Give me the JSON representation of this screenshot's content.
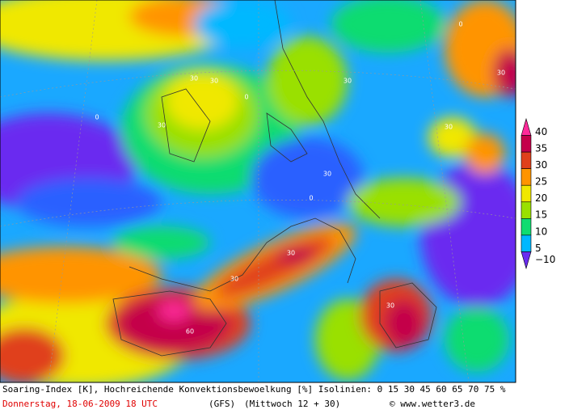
{
  "map": {
    "labels": [
      "0",
      "30",
      "30",
      "0",
      "30",
      "60",
      "30",
      "30",
      "0",
      "30",
      "30",
      "30",
      "0",
      "30",
      "30"
    ],
    "colorbar": [
      {
        "label": "40",
        "color": "#ff2a9a"
      },
      {
        "label": "35",
        "color": "#c4004a"
      },
      {
        "label": "30",
        "color": "#e0401a"
      },
      {
        "label": "25",
        "color": "#ff9400"
      },
      {
        "label": "20",
        "color": "#f0e800"
      },
      {
        "label": "15",
        "color": "#9ae000"
      },
      {
        "label": "10",
        "color": "#10dc70"
      },
      {
        "label": "5",
        "color": "#00b8ff"
      },
      {
        "label": "−10",
        "color": "#6a2cf0"
      }
    ]
  },
  "footer": {
    "line1": "Soaring-Index [K], Hochreichende Konvektionsbewoelkung [%] Isolinien: 0 15 30 45 60 65 70 75 %",
    "date": "Donnerstag, 18-06-2009  18 UTC",
    "model": "(GFS)",
    "run": "(Mittwoch 12 + 30)",
    "copyright": "© www.wetter3.de"
  }
}
